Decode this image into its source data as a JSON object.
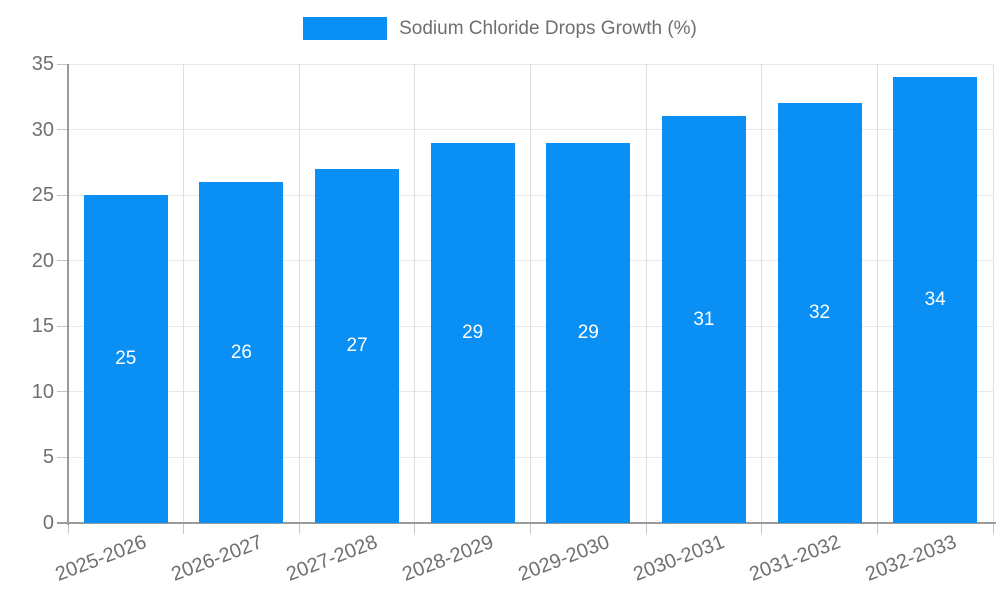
{
  "legend": {
    "label": "Sodium Chloride Drops Growth (%)"
  },
  "colors": {
    "bar": "#0a8ff5",
    "axis_line": "#9b9b9b",
    "grid_horizontal": "#e8e8e8",
    "grid_vertical": "#dedede",
    "tick": "#c6c6c6",
    "axis_text": "#707070",
    "legend_text": "#6f6f6f",
    "value_text": "#ffffff",
    "background": "#ffffff"
  },
  "chart_data": {
    "type": "bar",
    "title": "",
    "xlabel": "",
    "ylabel": "",
    "categories": [
      "2025-2026",
      "2026-2027",
      "2027-2028",
      "2028-2029",
      "2029-2030",
      "2030-2031",
      "2031-2032",
      "2032-2033"
    ],
    "series": [
      {
        "name": "Sodium Chloride Drops Growth (%)",
        "values": [
          25,
          26,
          27,
          29,
          29,
          31,
          32,
          34
        ]
      }
    ],
    "ylim": [
      0,
      35
    ],
    "yticks": [
      0,
      5,
      10,
      15,
      20,
      25,
      30,
      35
    ],
    "grid": true,
    "legend_position": "top",
    "value_labels": "inside-center",
    "x_label_rotation_deg": -21
  }
}
